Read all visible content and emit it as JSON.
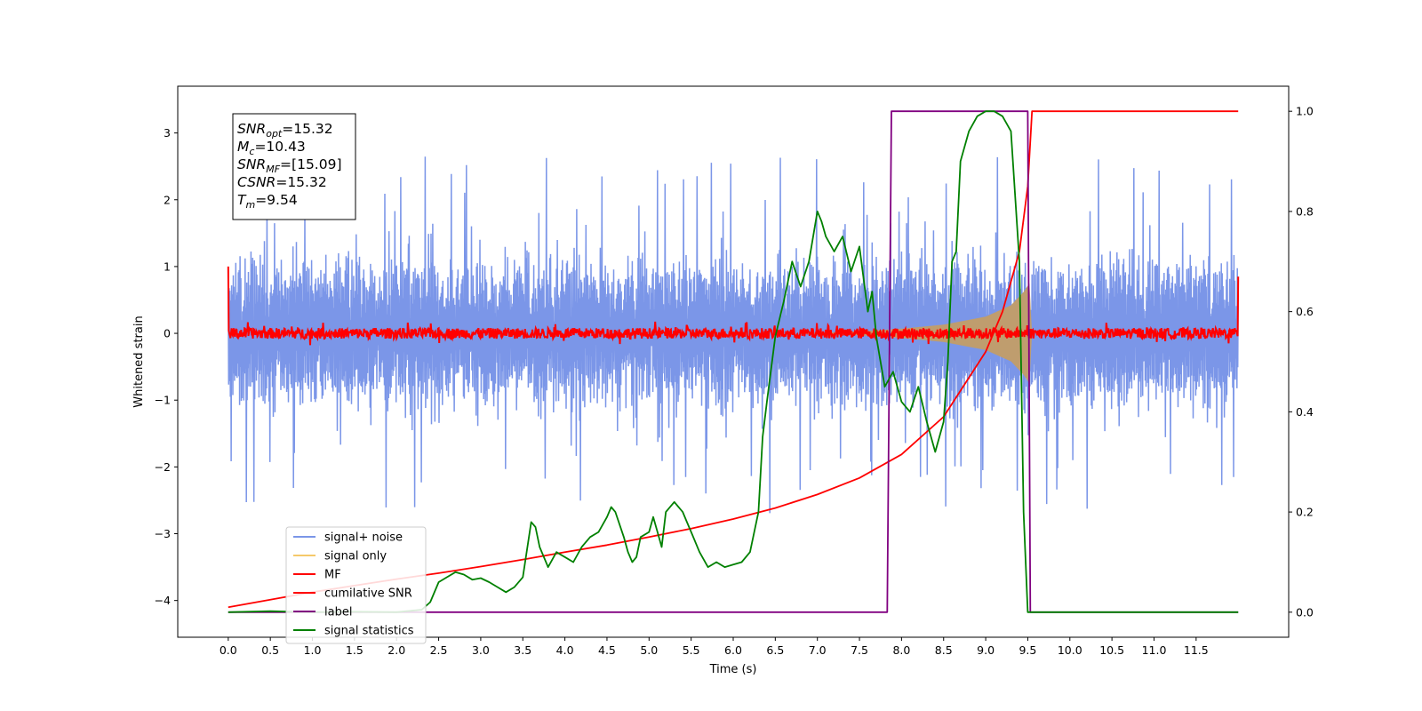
{
  "chart_data": {
    "type": "line",
    "xlabel": "Time (s)",
    "ylabel": "Whitened strain",
    "xlim": [
      -0.6,
      12.6
    ],
    "ylim": [
      -4.55,
      3.7
    ],
    "y2lim": [
      -0.05,
      1.05
    ],
    "x_ticks": [
      0.0,
      0.5,
      1.0,
      1.5,
      2.0,
      2.5,
      3.0,
      3.5,
      4.0,
      4.5,
      5.0,
      5.5,
      6.0,
      6.5,
      7.0,
      7.5,
      8.0,
      8.5,
      9.0,
      9.5,
      10.0,
      10.5,
      11.0,
      11.5
    ],
    "x_tick_labels": [
      "0.0",
      "0.5",
      "1.0",
      "1.5",
      "2.0",
      "2.5",
      "3.0",
      "3.5",
      "4.0",
      "4.5",
      "5.0",
      "5.5",
      "6.0",
      "6.5",
      "7.0",
      "7.5",
      "8.0",
      "8.5",
      "9.0",
      "9.5",
      "10.0",
      "10.5",
      "11.0",
      "11.5"
    ],
    "y_ticks": [
      -4,
      -3,
      -2,
      -1,
      0,
      1,
      2,
      3
    ],
    "y_tick_labels": [
      "−4",
      "−3",
      "−2",
      "−1",
      "0",
      "1",
      "2",
      "3"
    ],
    "y2_ticks": [
      0.0,
      0.2,
      0.4,
      0.6,
      0.8,
      1.0
    ],
    "y2_tick_labels": [
      "0.0",
      "0.2",
      "0.4",
      "0.6",
      "0.8",
      "1.0"
    ],
    "legend_placement": "lower-left",
    "grid": false,
    "annotation_lines": [
      {
        "id": "snr_opt",
        "main": "SNR",
        "sub": "opt",
        "value": "=15.32"
      },
      {
        "id": "mc",
        "main": "M",
        "sub": "c",
        "value": "=10.43"
      },
      {
        "id": "snr_mf",
        "main": "SNR",
        "sub": "MF",
        "value": "=[15.09]"
      },
      {
        "id": "csnr",
        "main": "CSNR",
        "sub": "",
        "value": "=15.32"
      },
      {
        "id": "tm",
        "main": "T",
        "sub": "m",
        "value": "=9.54"
      }
    ],
    "series": [
      {
        "name": "signal+ noise",
        "axis": "left",
        "color": "#7b96e8",
        "description": "white noise band",
        "x_range": [
          0.0,
          12.0
        ],
        "band": [
          -1.2,
          1.2
        ],
        "peaks_max": 3.3,
        "peaks_min": -2.8
      },
      {
        "name": "signal only",
        "axis": "left",
        "color": "#f5c96a",
        "x": [
          0.0,
          7.0,
          7.5,
          8.0,
          8.5,
          9.0,
          9.3,
          9.45,
          9.52,
          9.55
        ],
        "envelope": [
          0.0,
          0.01,
          0.03,
          0.07,
          0.13,
          0.25,
          0.42,
          0.62,
          0.75,
          0.0
        ]
      },
      {
        "name": "MF",
        "axis": "left",
        "color": "#ff0000",
        "x_range": [
          0.0,
          12.0
        ],
        "band": [
          -0.08,
          0.08
        ],
        "start_value": 1.0,
        "end_value": 0.85
      },
      {
        "name": "cumilative SNR",
        "axis": "right",
        "color": "#ff0000",
        "x": [
          0.0,
          0.5,
          1.0,
          1.5,
          2.0,
          2.5,
          3.0,
          3.5,
          4.0,
          4.5,
          5.0,
          5.5,
          6.0,
          6.5,
          7.0,
          7.5,
          8.0,
          8.5,
          9.0,
          9.2,
          9.4,
          9.5,
          9.55,
          9.6,
          12.0
        ],
        "values": [
          0.01,
          0.025,
          0.04,
          0.053,
          0.066,
          0.078,
          0.091,
          0.105,
          0.12,
          0.134,
          0.15,
          0.167,
          0.186,
          0.208,
          0.235,
          0.268,
          0.315,
          0.39,
          0.52,
          0.6,
          0.72,
          0.85,
          1.0,
          1.0,
          1.0
        ]
      },
      {
        "name": "label",
        "axis": "right",
        "color": "#800080",
        "x": [
          0.0,
          7.83,
          7.88,
          9.5,
          9.53,
          12.0
        ],
        "values": [
          0.0,
          0.0,
          1.0,
          1.0,
          0.0,
          0.0
        ]
      },
      {
        "name": "signal statistics",
        "axis": "right",
        "color": "#008000",
        "x": [
          0.0,
          0.5,
          1.0,
          1.5,
          2.0,
          2.3,
          2.4,
          2.5,
          2.6,
          2.7,
          2.8,
          2.9,
          3.0,
          3.1,
          3.2,
          3.3,
          3.4,
          3.5,
          3.6,
          3.65,
          3.7,
          3.8,
          3.9,
          4.0,
          4.1,
          4.2,
          4.3,
          4.4,
          4.5,
          4.55,
          4.6,
          4.7,
          4.75,
          4.8,
          4.85,
          4.9,
          5.0,
          5.05,
          5.1,
          5.15,
          5.2,
          5.3,
          5.4,
          5.45,
          5.5,
          5.6,
          5.7,
          5.8,
          5.9,
          6.0,
          6.1,
          6.2,
          6.3,
          6.35,
          6.4,
          6.5,
          6.6,
          6.7,
          6.8,
          6.9,
          7.0,
          7.05,
          7.1,
          7.2,
          7.3,
          7.4,
          7.5,
          7.6,
          7.65,
          7.7,
          7.8,
          7.9,
          8.0,
          8.1,
          8.2,
          8.3,
          8.4,
          8.5,
          8.55,
          8.6,
          8.65,
          8.7,
          8.8,
          8.9,
          9.0,
          9.1,
          9.2,
          9.3,
          9.4,
          9.45,
          9.5,
          9.55,
          9.6,
          12.0
        ],
        "values": [
          0.0,
          0.002,
          0.0,
          0.001,
          0.0,
          0.005,
          0.02,
          0.06,
          0.07,
          0.08,
          0.075,
          0.065,
          0.068,
          0.06,
          0.05,
          0.04,
          0.05,
          0.07,
          0.18,
          0.17,
          0.13,
          0.09,
          0.12,
          0.11,
          0.1,
          0.13,
          0.15,
          0.16,
          0.19,
          0.21,
          0.2,
          0.15,
          0.12,
          0.1,
          0.11,
          0.15,
          0.16,
          0.19,
          0.16,
          0.13,
          0.2,
          0.22,
          0.2,
          0.18,
          0.16,
          0.12,
          0.09,
          0.1,
          0.09,
          0.095,
          0.1,
          0.12,
          0.2,
          0.35,
          0.42,
          0.55,
          0.62,
          0.7,
          0.65,
          0.7,
          0.8,
          0.78,
          0.75,
          0.72,
          0.75,
          0.68,
          0.73,
          0.6,
          0.64,
          0.55,
          0.45,
          0.48,
          0.42,
          0.4,
          0.45,
          0.38,
          0.32,
          0.38,
          0.5,
          0.7,
          0.72,
          0.9,
          0.96,
          0.99,
          1.0,
          1.0,
          0.99,
          0.96,
          0.7,
          0.2,
          0.0,
          0.0,
          0.0,
          0.0
        ]
      }
    ]
  }
}
